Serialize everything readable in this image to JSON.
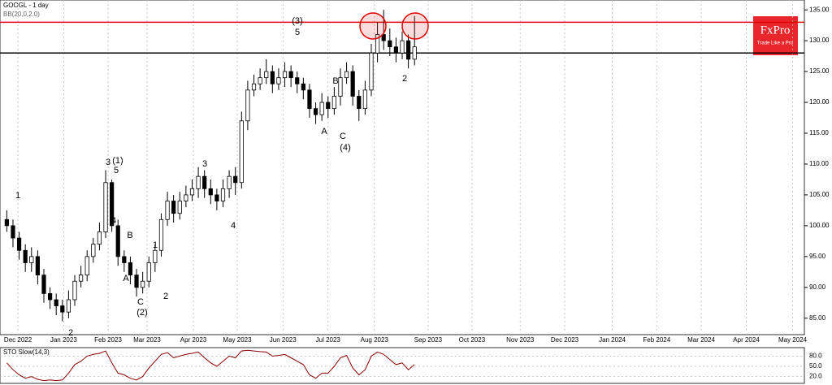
{
  "chart_data": [
    {
      "type": "candlestick",
      "title": "GOOGL - 1 day",
      "subtitle": "BB(20,0,2.0)",
      "categories": [
        null,
        null,
        null,
        null,
        null,
        null,
        null,
        null,
        null,
        null,
        null,
        null,
        null,
        null,
        null,
        null,
        null,
        null,
        null,
        null,
        null,
        null,
        null,
        null,
        null,
        null,
        null,
        null,
        null,
        null,
        null,
        null,
        null,
        null,
        null,
        null,
        null,
        null,
        null,
        null,
        null,
        null,
        null,
        null,
        null,
        null,
        null,
        null,
        null,
        null,
        null,
        null,
        null,
        null,
        null,
        null,
        null,
        null,
        null,
        null,
        null,
        null,
        null,
        null,
        null,
        null,
        null
      ],
      "open": [
        101,
        100,
        98,
        96,
        94,
        95,
        92,
        89,
        88,
        87,
        86,
        88,
        91,
        92,
        95,
        97,
        99,
        107,
        100,
        95,
        94,
        92,
        90,
        91,
        94,
        96,
        101,
        104,
        102,
        104,
        105,
        106,
        108,
        106,
        105,
        104,
        106,
        108,
        107,
        117,
        122,
        123,
        124,
        125,
        123,
        124,
        125,
        124,
        123,
        122,
        119,
        118,
        120,
        119,
        121,
        124,
        125,
        121,
        119,
        122,
        128,
        131,
        130,
        129,
        128,
        130,
        127
      ],
      "high": [
        102.5,
        101,
        99,
        97,
        96.5,
        96,
        93,
        90,
        89,
        88,
        89.5,
        92,
        93.5,
        96,
        98,
        100.5,
        109,
        107.5,
        101,
        96,
        95,
        93,
        92.5,
        95,
        97,
        102,
        105.5,
        105,
        105.5,
        106.5,
        107.5,
        109.5,
        109,
        107.5,
        106,
        107.5,
        109,
        109.5,
        118.5,
        123.5,
        124.5,
        125.5,
        127,
        126,
        125.5,
        126.5,
        126,
        125,
        124,
        123,
        120,
        121.5,
        121,
        122.5,
        125.5,
        126.5,
        126,
        122,
        123.5,
        129.5,
        133,
        135,
        132,
        130.5,
        131.5,
        131,
        134
      ],
      "low": [
        99,
        96.5,
        94.5,
        92.5,
        92.5,
        90.5,
        87.5,
        86.5,
        85.5,
        84.5,
        85,
        87,
        90,
        91,
        94,
        96,
        98,
        99,
        93.5,
        92.5,
        90.5,
        88.5,
        89,
        90,
        92.5,
        95,
        100,
        100.5,
        101,
        103,
        104,
        104.5,
        104.5,
        103.5,
        102.5,
        103,
        104.5,
        105,
        106,
        115.5,
        121,
        122,
        123,
        121.5,
        122,
        122.5,
        122.5,
        121.5,
        120.5,
        117.5,
        116.5,
        117,
        117.5,
        118,
        119.5,
        123,
        119.5,
        117,
        118,
        121,
        126.5,
        128.5,
        127.5,
        126.5,
        127,
        125.5,
        126
      ],
      "close": [
        100,
        98,
        96,
        94,
        95,
        92,
        89,
        88,
        87,
        86,
        88,
        91,
        92,
        95,
        97,
        99,
        107,
        100,
        95,
        94,
        92,
        90,
        91,
        94,
        96,
        101,
        104,
        102,
        104,
        105,
        106,
        108,
        106,
        105,
        104,
        106,
        108,
        107,
        117,
        122,
        123,
        124,
        125,
        123,
        124,
        125,
        124,
        123,
        122,
        119,
        118,
        120,
        119,
        121,
        124,
        125,
        121,
        119,
        122,
        128,
        131,
        130,
        129,
        128,
        130,
        127,
        129
      ],
      "color": "#000000",
      "xlim": [
        -1.1,
        129.1
      ],
      "xticks": [
        {
          "value": 1.8,
          "label": "Dec 2022"
        },
        {
          "value": 9.2,
          "label": "Jan 2023"
        },
        {
          "value": 16.4,
          "label": "Feb 2023"
        },
        {
          "value": 22.7,
          "label": "Mar 2023"
        },
        {
          "value": 30.2,
          "label": "Apr 2023"
        },
        {
          "value": 37.3,
          "label": "May 2023"
        },
        {
          "value": 44.7,
          "label": "Jun 2023"
        },
        {
          "value": 52.0,
          "label": "Jul 2023"
        },
        {
          "value": 59.5,
          "label": "Aug 2023"
        },
        {
          "value": 68.2,
          "label": "Sep 2023"
        },
        {
          "value": 75.3,
          "label": "Oct 2023"
        },
        {
          "value": 83.1,
          "label": "Nov 2023"
        },
        {
          "value": 90.3,
          "label": "Dec 2023"
        },
        {
          "value": 98.0,
          "label": "Jan 2024"
        },
        {
          "value": 105.2,
          "label": "Feb 2024"
        },
        {
          "value": 112.4,
          "label": "Mar 2024"
        },
        {
          "value": 119.7,
          "label": "Apr 2024"
        },
        {
          "value": 127.2,
          "label": "May 2024"
        }
      ],
      "ylim": [
        82.6,
        136.6
      ],
      "yticks": [
        {
          "value": 85,
          "label": "85.00"
        },
        {
          "value": 90,
          "label": "90.00"
        },
        {
          "value": 95,
          "label": "95.00"
        },
        {
          "value": 100,
          "label": "100.00"
        },
        {
          "value": 105,
          "label": "105.00"
        },
        {
          "value": 110,
          "label": "110.00"
        },
        {
          "value": 115,
          "label": "115.00"
        },
        {
          "value": 120,
          "label": "120.00"
        },
        {
          "value": 125,
          "label": "125.00"
        },
        {
          "value": 130,
          "label": "130.00"
        },
        {
          "value": 135,
          "label": "135.00"
        }
      ],
      "grid": true,
      "levels": [
        {
          "value": 133,
          "color": "#e00000"
        },
        {
          "value": 128,
          "color": "#000000"
        }
      ],
      "annotations": [
        "(3)",
        "5",
        "B",
        "A",
        "C",
        "(4)",
        "3",
        "(1)",
        "5",
        "4",
        "B",
        "A",
        "C",
        "(2)",
        "1",
        "2",
        "3",
        "4",
        "1",
        "2",
        "2"
      ]
    },
    {
      "type": "line",
      "title": "STO Slow(14,3)",
      "series": [
        {
          "color": "#8b0000",
          "values": [
            60,
            40,
            25,
            15,
            20,
            12,
            8,
            10,
            8,
            10,
            30,
            55,
            65,
            80,
            85,
            88,
            95,
            60,
            30,
            25,
            15,
            10,
            20,
            45,
            65,
            85,
            90,
            75,
            80,
            85,
            88,
            92,
            75,
            60,
            50,
            65,
            80,
            75,
            95,
            97,
            95,
            93,
            92,
            80,
            82,
            85,
            75,
            65,
            55,
            25,
            15,
            30,
            30,
            50,
            75,
            82,
            45,
            25,
            40,
            80,
            92,
            85,
            70,
            55,
            60,
            40,
            55
          ]
        }
      ],
      "ylim": [
        0,
        100
      ],
      "yticks": [
        {
          "value": 20,
          "label": "20.0"
        },
        {
          "value": 50,
          "label": "50.0"
        },
        {
          "value": 80,
          "label": "80.0"
        }
      ]
    }
  ],
  "logo": {
    "name": "FxPro",
    "tagline": "Trade Like a Pro"
  }
}
